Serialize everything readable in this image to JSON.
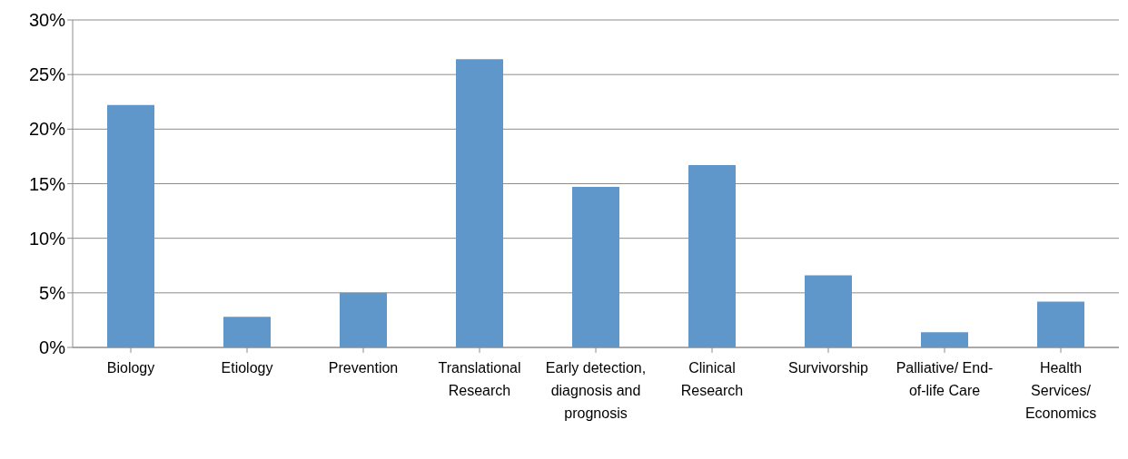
{
  "chart_data": {
    "type": "bar",
    "categories": [
      "Biology",
      "Etiology",
      "Prevention",
      "Translational Research",
      "Early detection, diagnosis and prognosis",
      "Clinical Research",
      "Survivorship",
      "Palliative/ End-of-life Care",
      "Health Services/ Economics"
    ],
    "values": [
      22.2,
      2.8,
      5.0,
      26.4,
      14.7,
      16.7,
      6.6,
      1.4,
      4.2
    ],
    "color": "#6097cb",
    "ylim": [
      0,
      30
    ],
    "yticks": [
      {
        "value": 0,
        "label": "0%"
      },
      {
        "value": 5,
        "label": "5%"
      },
      {
        "value": 10,
        "label": "10%"
      },
      {
        "value": 15,
        "label": "15%"
      },
      {
        "value": 20,
        "label": "20%"
      },
      {
        "value": 25,
        "label": "25%"
      },
      {
        "value": 30,
        "label": "30%"
      }
    ],
    "grid": "y"
  }
}
